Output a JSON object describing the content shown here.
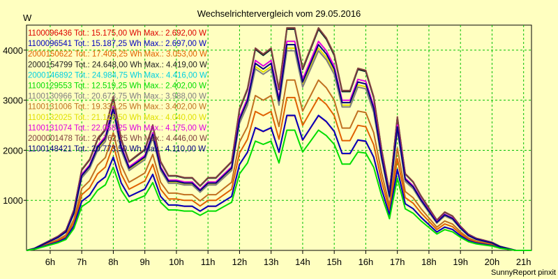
{
  "chart_data": {
    "type": "line",
    "title": "Wechselrichtervergleich vom 29.05.2016",
    "ylabel": "W",
    "footer": "SunnyReport pinxit",
    "xlim": [
      5.25,
      21.25
    ],
    "ylim": [
      0,
      4500
    ],
    "x_ticks": [
      6,
      7,
      8,
      9,
      10,
      11,
      12,
      13,
      14,
      15,
      16,
      17,
      18,
      19,
      20,
      21
    ],
    "x_tick_labels": [
      "6h",
      "7h",
      "8h",
      "9h",
      "10h",
      "11h",
      "12h",
      "13h",
      "14h",
      "15h",
      "16h",
      "17h",
      "18h",
      "19h",
      "20h",
      "21h"
    ],
    "y_ticks": [
      1000,
      2000,
      3000,
      4000
    ],
    "y_tick_labels": [
      "1000",
      "2000",
      "3000",
      "4000"
    ],
    "grid": true,
    "legend_position": "top-left",
    "x": [
      5.25,
      5.5,
      5.75,
      6.0,
      6.25,
      6.5,
      6.75,
      7.0,
      7.25,
      7.5,
      7.75,
      8.0,
      8.25,
      8.5,
      8.75,
      9.0,
      9.25,
      9.5,
      9.75,
      10.0,
      10.25,
      10.5,
      10.75,
      11.0,
      11.25,
      11.5,
      11.75,
      12.0,
      12.25,
      12.5,
      12.75,
      13.0,
      13.25,
      13.5,
      13.75,
      14.0,
      14.25,
      14.5,
      14.75,
      15.0,
      15.25,
      15.5,
      15.75,
      16.0,
      16.25,
      16.5,
      16.75,
      17.0,
      17.25,
      17.5,
      17.75,
      18.0,
      18.25,
      18.5,
      18.75,
      19.0,
      19.25,
      19.5,
      19.75,
      20.0,
      20.25,
      20.5,
      20.75,
      21.0,
      21.25
    ],
    "base_profile": [
      0,
      0.01,
      0.03,
      0.05,
      0.07,
      0.1,
      0.2,
      0.4,
      0.45,
      0.55,
      0.6,
      0.76,
      0.55,
      0.44,
      0.47,
      0.5,
      0.62,
      0.44,
      0.37,
      0.37,
      0.36,
      0.36,
      0.32,
      0.36,
      0.36,
      0.4,
      0.44,
      0.7,
      0.8,
      1.0,
      0.97,
      1.0,
      0.8,
      1.1,
      1.1,
      0.9,
      1.0,
      1.1,
      1.05,
      0.97,
      0.79,
      0.79,
      0.9,
      0.89,
      0.76,
      0.5,
      0.29,
      0.66,
      0.38,
      0.34,
      0.27,
      0.21,
      0.15,
      0.19,
      0.17,
      0.12,
      0.08,
      0.06,
      0.05,
      0.04,
      0.02,
      0.01,
      0,
      0,
      0
    ],
    "series": [
      {
        "name": "1100096436",
        "label": "1100096436 Tot.: 15.175,00 Wh Max.: 2.692,00 W",
        "color": "#dd0000",
        "max": 2692
      },
      {
        "name": "1100096541",
        "label": "1100096541 Tot.: 15.187,25 Wh Max.: 2.697,00 W",
        "color": "#0000c0",
        "max": 2697
      },
      {
        "name": "2000150622",
        "label": "2000150622 Tot.: 17.405,25 Wh Max.: 3.053,00 W",
        "color": "#e06000",
        "max": 3053
      },
      {
        "name": "2000154799",
        "label": "2000154799 Tot.: 24.648,00 Wh Max.: 4.419,00 W",
        "color": "#202020",
        "max": 4419
      },
      {
        "name": "2000146892",
        "label": "2000146892 Tot.: 24.984,75 Wh Max.: 4.416,00 W",
        "color": "#00d0e0",
        "max": 4416
      },
      {
        "name": "1100129553",
        "label": "1100129553 Tot.: 12.519,25 Wh Max.: 2.402,00 W",
        "color": "#00dd00",
        "max": 2402
      },
      {
        "name": "1100130966",
        "label": "1100130966 Tot.: 20.673,75 Wh Max.: 3.988,00 W",
        "color": "#808080",
        "max": 3988
      },
      {
        "name": "1100131006",
        "label": "1100131006 Tot.: 19.333,25 Wh Max.: 3.402,00 W",
        "color": "#c07020",
        "max": 3402
      },
      {
        "name": "1100132025",
        "label": "1100132025 Tot.: 21.120,50 Wh Max.: 4.040,00 W",
        "color": "#e0e000",
        "max": 4040
      },
      {
        "name": "1100131074",
        "label": "1100131074 Tot.: 22.068,25 Wh Max.: 4.175,00 W",
        "color": "#e000e0",
        "max": 4175
      },
      {
        "name": "2000001478",
        "label": "2000001478 Tot.: 24.762,25 Wh Max.: 4.446,00 W",
        "color": "#804040",
        "max": 4446
      },
      {
        "name": "1100148421",
        "label": "1100148421 Tot.: 20.773,50 Wh Max.: 4.110,00 W",
        "color": "#000080",
        "max": 4110
      }
    ]
  }
}
